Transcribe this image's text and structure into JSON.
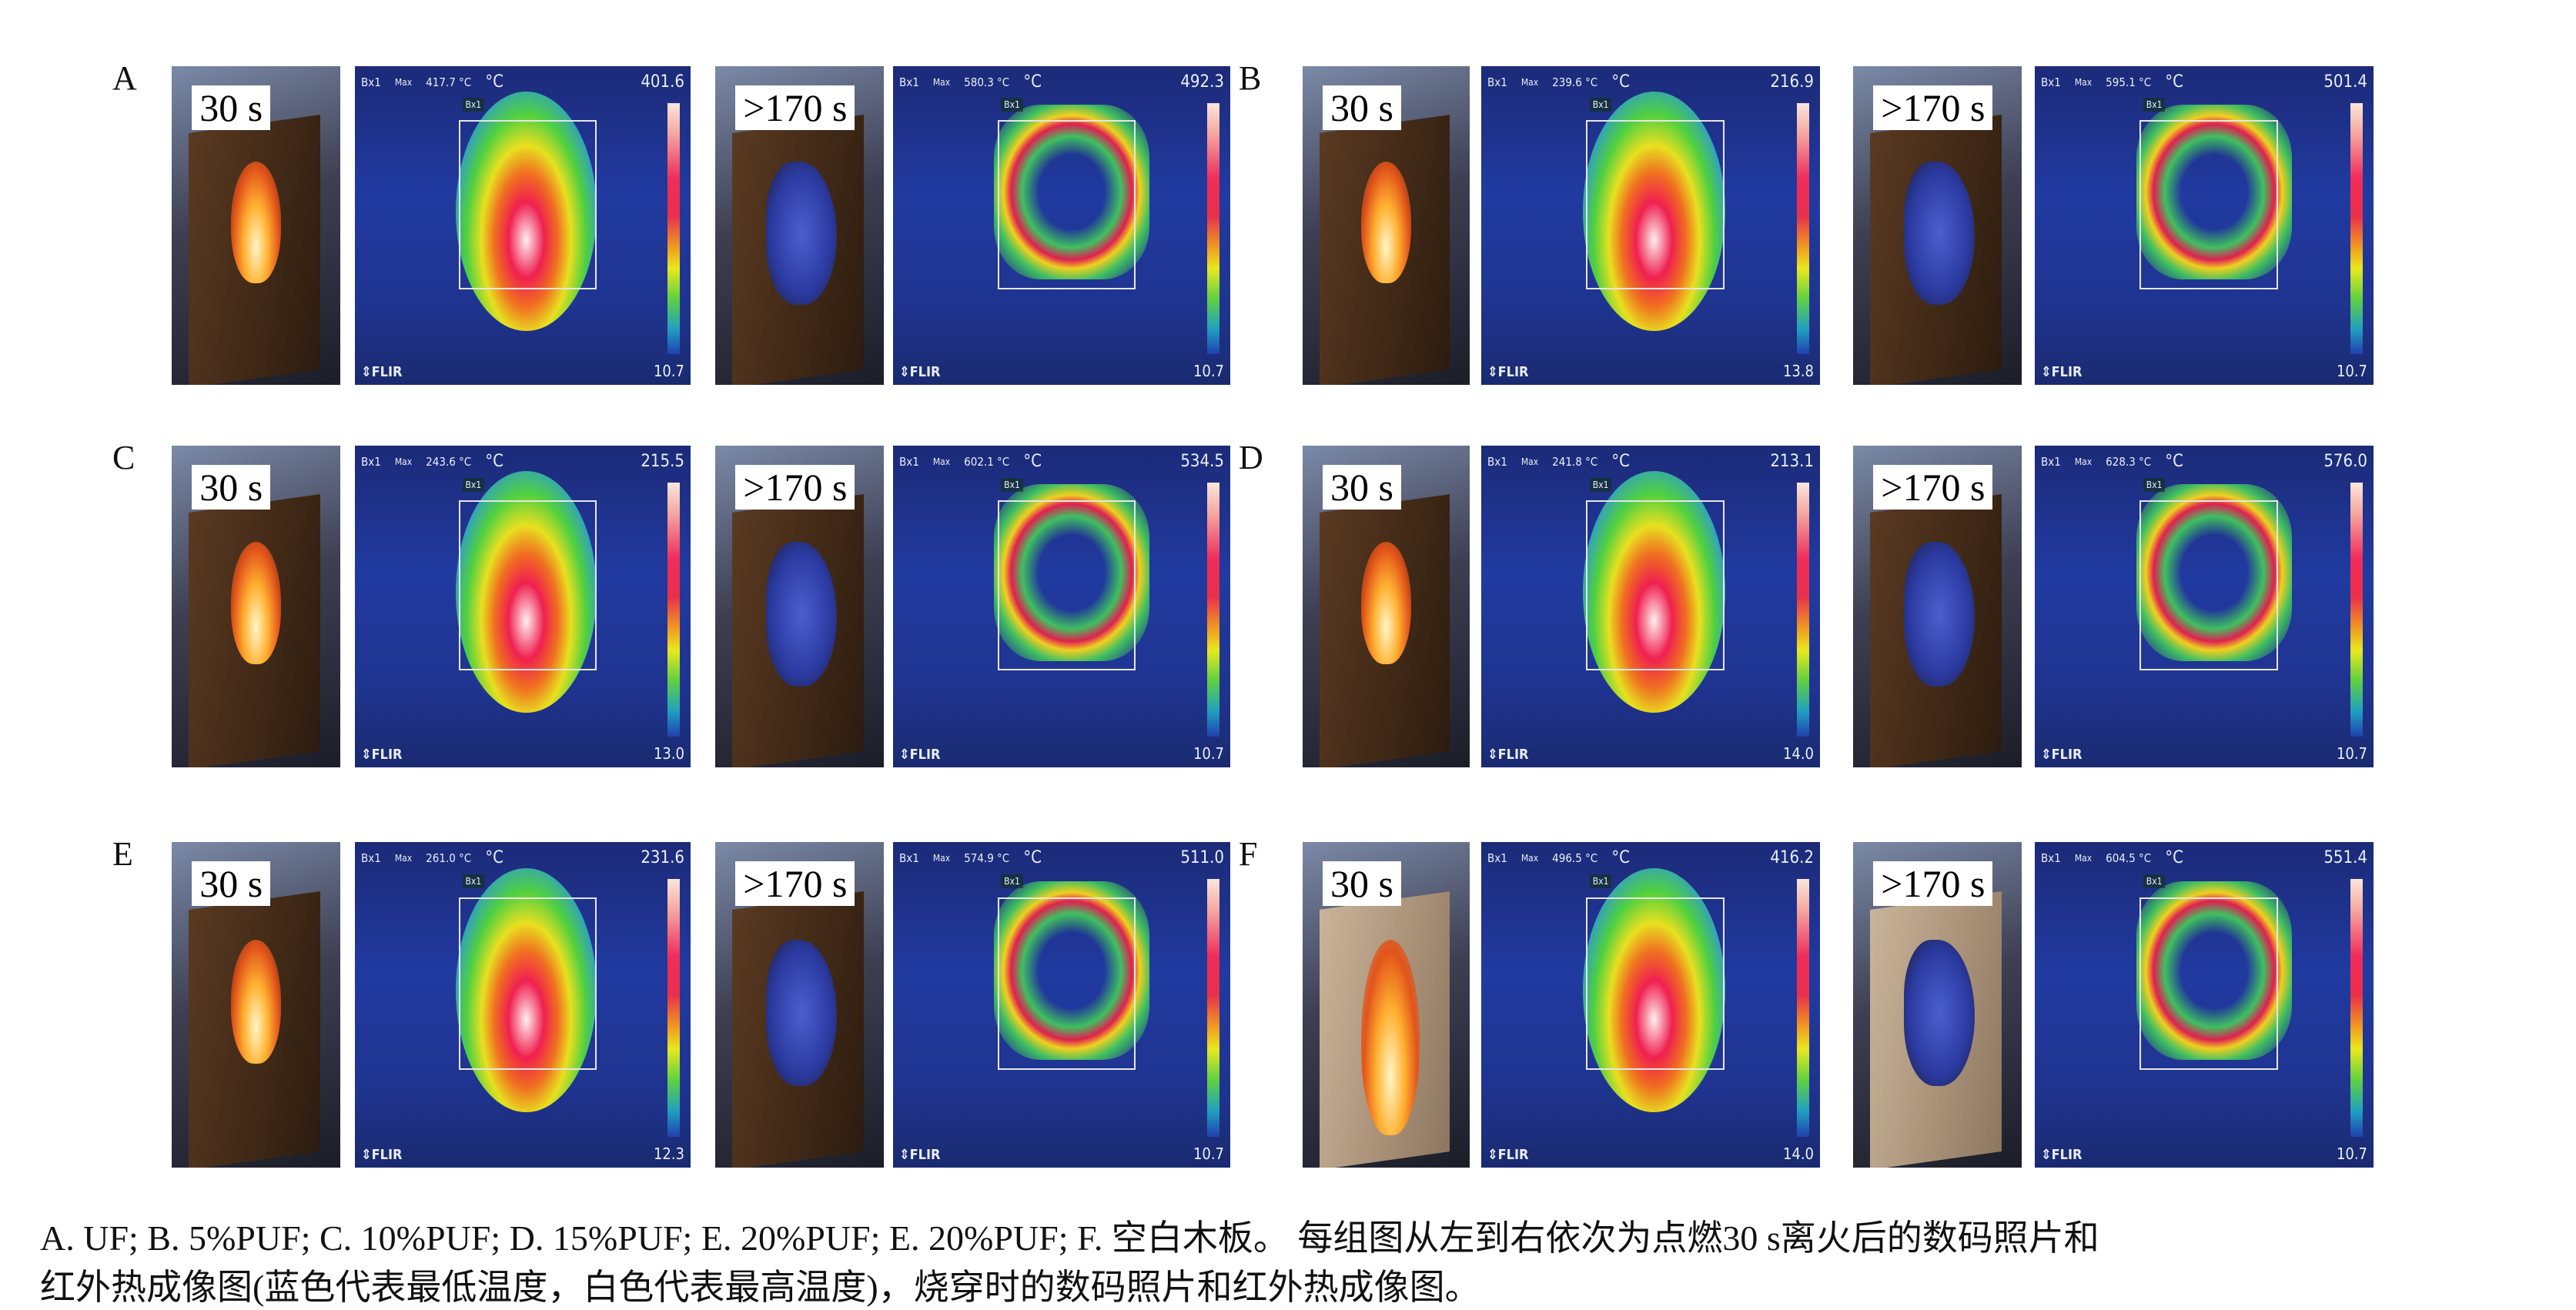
{
  "panels": [
    {
      "label": "A",
      "photo1_tag": "30 s",
      "photo2_tag": ">170 s",
      "t1": {
        "bx": "Bx1",
        "max_label": "Max",
        "max": "417.7 °C",
        "unit": "°C",
        "box_label": "Bx1",
        "scale_max": "401.6",
        "scale_min": "10.7",
        "brand": "⇕FLIR"
      },
      "t2": {
        "bx": "Bx1",
        "max_label": "Max",
        "max": "580.3 °C",
        "unit": "°C",
        "box_label": "Bx1",
        "scale_max": "492.3",
        "scale_min": "10.7",
        "brand": "⇕FLIR"
      }
    },
    {
      "label": "B",
      "photo1_tag": "30 s",
      "photo2_tag": ">170 s",
      "t1": {
        "bx": "Bx1",
        "max_label": "Max",
        "max": "239.6 °C",
        "unit": "°C",
        "box_label": "Bx1",
        "scale_max": "216.9",
        "scale_min": "13.8",
        "brand": "⇕FLIR"
      },
      "t2": {
        "bx": "Bx1",
        "max_label": "Max",
        "max": "595.1 °C",
        "unit": "°C",
        "box_label": "Bx1",
        "scale_max": "501.4",
        "scale_min": "10.7",
        "brand": "⇕FLIR"
      }
    },
    {
      "label": "C",
      "photo1_tag": "30 s",
      "photo2_tag": ">170 s",
      "t1": {
        "bx": "Bx1",
        "max_label": "Max",
        "max": "243.6 °C",
        "unit": "°C",
        "box_label": "Bx1",
        "scale_max": "215.5",
        "scale_min": "13.0",
        "brand": "⇕FLIR"
      },
      "t2": {
        "bx": "Bx1",
        "max_label": "Max",
        "max": "602.1 °C",
        "unit": "°C",
        "box_label": "Bx1",
        "scale_max": "534.5",
        "scale_min": "10.7",
        "brand": "⇕FLIR"
      }
    },
    {
      "label": "D",
      "photo1_tag": "30 s",
      "photo2_tag": ">170 s",
      "t1": {
        "bx": "Bx1",
        "max_label": "Max",
        "max": "241.8 °C",
        "unit": "°C",
        "box_label": "Bx1",
        "scale_max": "213.1",
        "scale_min": "14.0",
        "brand": "⇕FLIR"
      },
      "t2": {
        "bx": "Bx1",
        "max_label": "Max",
        "max": "628.3 °C",
        "unit": "°C",
        "box_label": "Bx1",
        "scale_max": "576.0",
        "scale_min": "10.7",
        "brand": "⇕FLIR"
      }
    },
    {
      "label": "E",
      "photo1_tag": "30 s",
      "photo2_tag": ">170 s",
      "t1": {
        "bx": "Bx1",
        "max_label": "Max",
        "max": "261.0 °C",
        "unit": "°C",
        "box_label": "Bx1",
        "scale_max": "231.6",
        "scale_min": "12.3",
        "brand": "⇕FLIR"
      },
      "t2": {
        "bx": "Bx1",
        "max_label": "Max",
        "max": "574.9 °C",
        "unit": "°C",
        "box_label": "Bx1",
        "scale_max": "511.0",
        "scale_min": "10.7",
        "brand": "⇕FLIR"
      }
    },
    {
      "label": "F",
      "photo1_tag": "30 s",
      "photo2_tag": ">170 s",
      "t1": {
        "bx": "Bx1",
        "max_label": "Max",
        "max": "496.5 °C",
        "unit": "°C",
        "box_label": "Bx1",
        "scale_max": "416.2",
        "scale_min": "14.0",
        "brand": "⇕FLIR"
      },
      "t2": {
        "bx": "Bx1",
        "max_label": "Max",
        "max": "604.5 °C",
        "unit": "°C",
        "box_label": "Bx1",
        "scale_max": "551.4",
        "scale_min": "10.7",
        "brand": "⇕FLIR"
      }
    }
  ],
  "caption": {
    "line1": "A. UF; B. 5%PUF; C. 10%PUF; D. 15%PUF; E. 20%PUF; E. 20%PUF; F. 空白木板。  每组图从左到右依次为点燃30 s离火后的数码照片和",
    "line2": "红外热成像图(蓝色代表最低温度，白色代表最高温度)，烧穿时的数码照片和红外热成像图。"
  }
}
